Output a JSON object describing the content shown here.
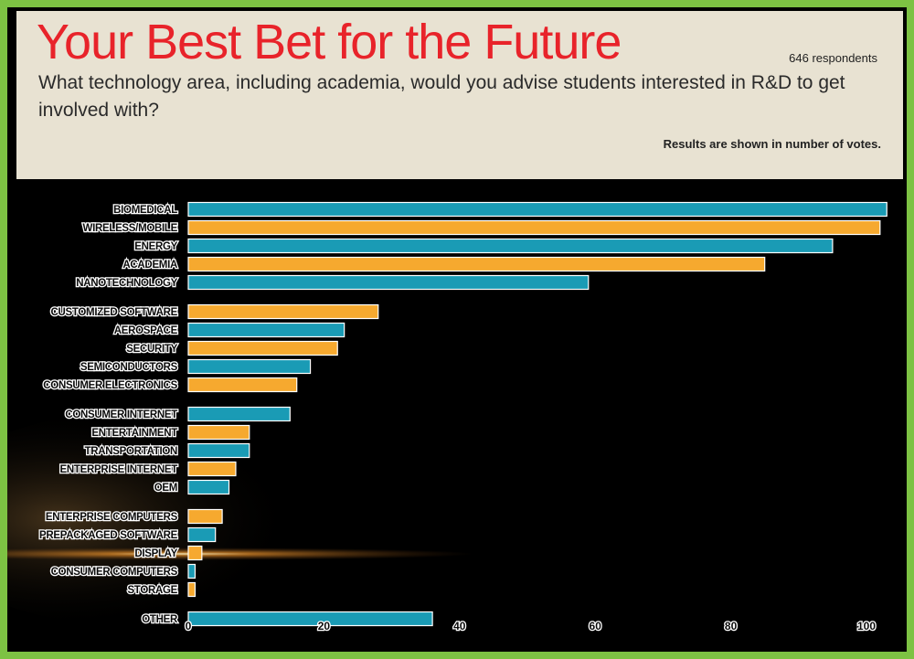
{
  "header": {
    "title": "Your Best Bet for the Future",
    "respondents": "646 respondents",
    "question": "What technology area, including academia, would you advise students interested in R&D to get involved with?",
    "note": "Results are shown in number of votes."
  },
  "colors": {
    "teal": "#1a9bb5",
    "orange": "#f6a92f",
    "background": "#000000",
    "header_background": "#e8e2d2",
    "title": "#e8232a",
    "frame": "#7dc243"
  },
  "chart_data": {
    "type": "bar",
    "orientation": "horizontal",
    "title": "Your Best Bet for the Future",
    "xlabel": "",
    "ylabel": "",
    "xlim": [
      0,
      103
    ],
    "xticks": [
      0,
      20,
      40,
      60,
      80,
      100
    ],
    "grid": false,
    "legend": "none",
    "categories": [
      "BIOMEDICAL",
      "WIRELESS/MOBILE",
      "ENERGY",
      "ACADEMIA",
      "NANOTECHNOLOGY",
      "CUSTOMIZED SOFTWARE",
      "AEROSPACE",
      "SECURITY",
      "SEMICONDUCTORS",
      "CONSUMER ELECTRONICS",
      "CONSUMER INTERNET",
      "ENTERTAINMENT",
      "TRANSPORTATION",
      "ENTERPRISE INTERNET",
      "OEM",
      "ENTERPRISE COMPUTERS",
      "PREPACKAGED SOFTWARE",
      "DISPLAY",
      "CONSUMER COMPUTERS",
      "STORAGE",
      "OTHER"
    ],
    "values": [
      103,
      102,
      95,
      85,
      59,
      28,
      23,
      22,
      18,
      16,
      15,
      9,
      9,
      7,
      6,
      5,
      4,
      2,
      1,
      1,
      36
    ],
    "bar_colors": [
      "teal",
      "orange",
      "teal",
      "orange",
      "teal",
      "orange",
      "teal",
      "orange",
      "teal",
      "orange",
      "teal",
      "orange",
      "teal",
      "orange",
      "teal",
      "orange",
      "teal",
      "orange",
      "teal",
      "orange",
      "teal"
    ]
  }
}
